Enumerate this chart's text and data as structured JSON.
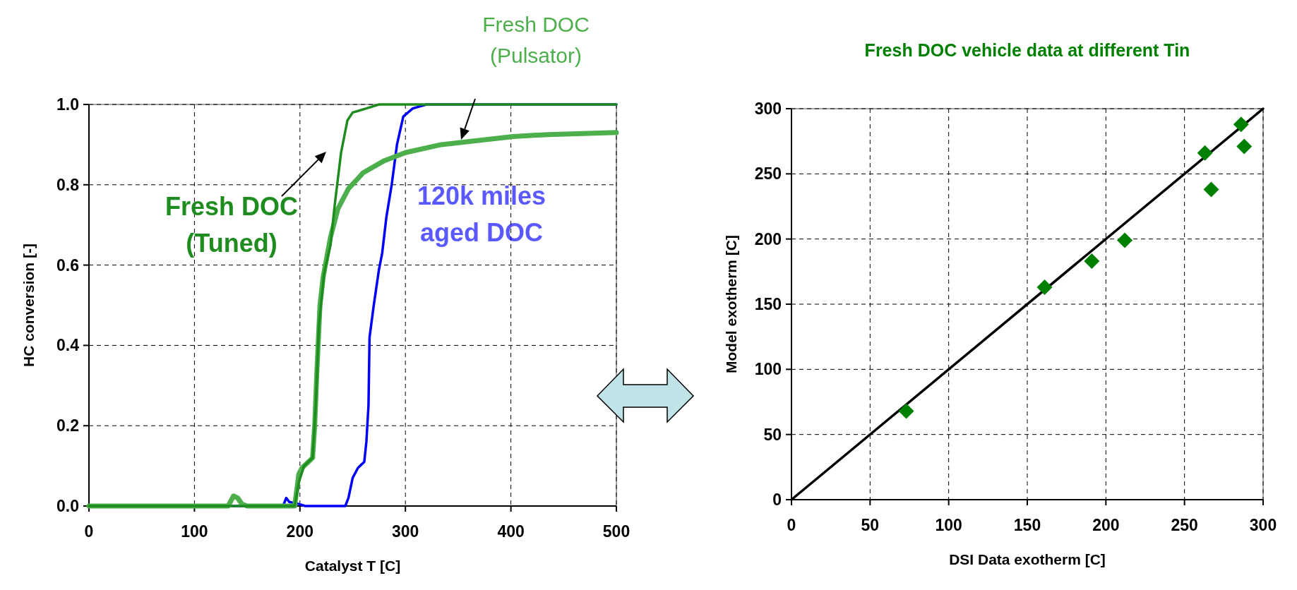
{
  "chart_data": [
    {
      "type": "line",
      "xlabel": "Catalyst T [C]",
      "ylabel": "HC conversion [-]",
      "xlim": [
        0,
        500
      ],
      "xticks": [
        0,
        100,
        200,
        300,
        400,
        500
      ],
      "ylim": [
        0,
        1
      ],
      "yticks": [
        {
          "value": 0,
          "label": "0.0"
        },
        0.2,
        0.4,
        0.6,
        0.8,
        {
          "value": 1,
          "label": "1.0"
        }
      ],
      "grid": true,
      "line_style": "solid",
      "marker": "none",
      "series": [
        {
          "name": "Fresh DOC (Tuned)",
          "color": "#1f8c1f",
          "x": [
            0,
            195,
            199,
            204,
            212,
            215,
            218,
            223,
            229,
            233,
            239,
            245,
            250,
            263,
            275,
            500
          ],
          "values": [
            0,
            0,
            0.06,
            0.1,
            0.12,
            0.25,
            0.45,
            0.58,
            0.65,
            0.75,
            0.88,
            0.96,
            0.98,
            0.99,
            1.0,
            1.0
          ]
        },
        {
          "name": "Fresh DOC (Pulsator)",
          "color": "#4caf4c",
          "x": [
            0,
            132,
            137,
            141,
            145,
            150,
            195,
            199,
            202,
            212,
            214,
            216,
            219,
            222,
            229,
            236,
            246,
            260,
            280,
            300,
            334,
            368,
            402,
            435,
            500
          ],
          "values": [
            0,
            0,
            0.025,
            0.02,
            0.005,
            0,
            0,
            0.08,
            0.095,
            0.12,
            0.2,
            0.33,
            0.5,
            0.57,
            0.67,
            0.74,
            0.79,
            0.83,
            0.86,
            0.88,
            0.9,
            0.91,
            0.92,
            0.925,
            0.93
          ]
        },
        {
          "name": "120k miles aged DOC",
          "color": "#0000ff",
          "x": [
            136,
            184,
            187,
            190,
            199,
            205,
            243,
            246,
            250,
            255,
            261,
            263,
            265,
            266,
            270,
            275,
            278,
            282,
            287,
            292,
            298,
            307,
            320,
            500
          ],
          "values": [
            0,
            0,
            0.02,
            0.01,
            0.005,
            0,
            0,
            0.02,
            0.07,
            0.095,
            0.11,
            0.16,
            0.25,
            0.42,
            0.5,
            0.59,
            0.63,
            0.72,
            0.8,
            0.9,
            0.97,
            0.99,
            1.0,
            1.0
          ]
        }
      ]
    },
    {
      "type": "scatter",
      "title": "Fresh DOC vehicle data at different Tin",
      "xlabel": "DSI Data exotherm [C]",
      "ylabel": "Model exotherm [C]",
      "xlim": [
        0,
        300
      ],
      "xticks": [
        0,
        50,
        100,
        150,
        200,
        250,
        300
      ],
      "ylim": [
        0,
        300
      ],
      "yticks": [
        0,
        50,
        100,
        150,
        200,
        250,
        300
      ],
      "grid": true,
      "series": [
        {
          "marker": "diamond",
          "color": "#008000",
          "x": [
            73,
            161,
            191,
            212,
            263,
            267,
            286,
            288
          ],
          "values": [
            68,
            163,
            183,
            199,
            266,
            238,
            288,
            271
          ]
        },
        {
          "type": "line",
          "marker": "none",
          "color": "#000000",
          "x": [
            0,
            300
          ],
          "values": [
            0,
            300
          ]
        }
      ]
    }
  ]
}
